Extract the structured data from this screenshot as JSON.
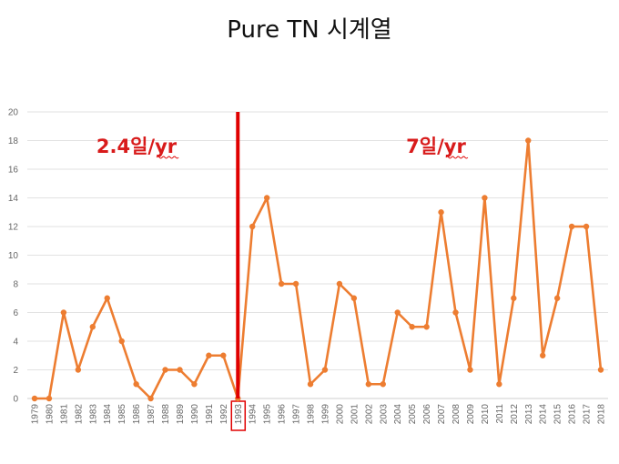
{
  "chart_data": {
    "type": "line",
    "title": "Pure TN 시계열",
    "xlabel": "",
    "ylabel": "",
    "ylim": [
      0,
      20
    ],
    "yticks": [
      0,
      2,
      4,
      6,
      8,
      10,
      12,
      14,
      16,
      18,
      20
    ],
    "grid": true,
    "legend": "none",
    "x": [
      "1979",
      "1980",
      "1981",
      "1982",
      "1983",
      "1984",
      "1985",
      "1986",
      "1987",
      "1988",
      "1989",
      "1990",
      "1991",
      "1992",
      "1993",
      "1994",
      "1995",
      "1996",
      "1997",
      "1998",
      "1999",
      "2000",
      "2001",
      "2002",
      "2003",
      "2004",
      "2005",
      "2006",
      "2007",
      "2008",
      "2009",
      "2010",
      "2011",
      "2012",
      "2013",
      "2014",
      "2015",
      "2016",
      "2017",
      "2018"
    ],
    "series": [
      {
        "values": [
          0,
          0,
          6,
          2,
          5,
          7,
          4,
          1,
          0,
          2,
          2,
          1,
          3,
          3,
          0,
          12,
          14,
          8,
          8,
          1,
          2,
          8,
          7,
          1,
          1,
          6,
          5,
          5,
          13,
          6,
          2,
          14,
          1,
          7,
          18,
          3,
          7,
          12,
          12,
          2
        ]
      }
    ],
    "line_color": "#ED7D31",
    "divider_color": "#E00000",
    "divider_at": "1993",
    "highlighted_tick": "1993",
    "annotations": [
      {
        "text": "2.4일/yr",
        "period": "before"
      },
      {
        "text": "7일/yr",
        "period": "after"
      }
    ]
  }
}
